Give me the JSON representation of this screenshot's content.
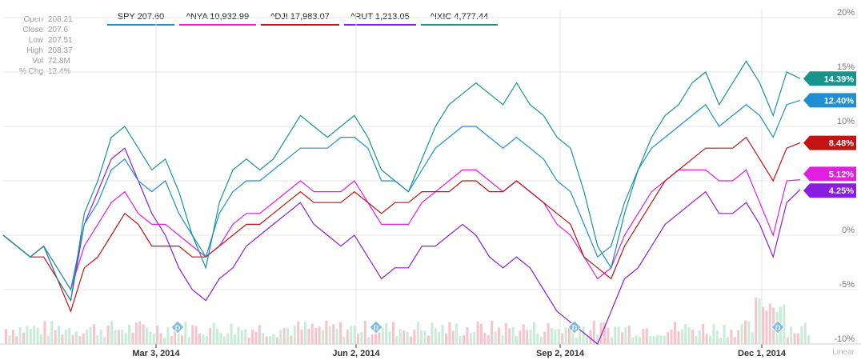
{
  "ohlc_panel": {
    "rows": [
      {
        "key": "Open",
        "value": "208.21"
      },
      {
        "key": "Close",
        "value": "207.6"
      },
      {
        "key": "Low",
        "value": "207.51"
      },
      {
        "key": "High",
        "value": "208.37"
      },
      {
        "key": "Vol",
        "value": "72.8M"
      },
      {
        "key": "% Chg",
        "value": "12.4%"
      }
    ]
  },
  "legend": [
    {
      "label": "SPY 207.60",
      "color": "#1f8fd1"
    },
    {
      "label": "^NYA 10,932.99",
      "color": "#e01fe0"
    },
    {
      "label": "^DJI 17,983.07",
      "color": "#c31313"
    },
    {
      "label": "^RUT 1,213.05",
      "color": "#8a1ee0"
    },
    {
      "label": "^IXIC 4,777.44",
      "color": "#19948c"
    }
  ],
  "scale_label": "Linear",
  "chart_data": {
    "type": "line",
    "x_ticks": [
      "Mar 3, 2014",
      "Jun 2, 2014",
      "Sep 2, 2014",
      "Dec 1, 2014"
    ],
    "y_ticks": [
      "20%",
      "15%",
      "10%",
      "5%",
      "0%",
      "-5%",
      "-10%"
    ],
    "ylim": [
      -10,
      20
    ],
    "grid": true,
    "series": [
      {
        "name": "^IXIC 4,777.44",
        "color": "#19948c",
        "end_label": "14.39%",
        "values": [
          0,
          -1,
          -2,
          -1,
          -4,
          -6,
          2,
          5,
          9,
          10,
          8,
          6,
          7,
          4,
          0,
          -3,
          3,
          6,
          7,
          6,
          7,
          9,
          11,
          10,
          9,
          10,
          11,
          9,
          6,
          5,
          4,
          7,
          10,
          12,
          13,
          14,
          13,
          12,
          14,
          12,
          11,
          9,
          8,
          4,
          -1,
          -3,
          2,
          6,
          9,
          11,
          12,
          14,
          15,
          12,
          14,
          16,
          14,
          11,
          15,
          14.4
        ]
      },
      {
        "name": "SPY 207.60",
        "color": "#1f8fd1",
        "end_label": "12.40%",
        "values": [
          0,
          -1,
          -2,
          -1,
          -3,
          -5,
          1,
          3,
          6,
          7,
          5,
          4,
          5,
          2,
          0,
          -2,
          2,
          4,
          5,
          5,
          6,
          7,
          8,
          8,
          8,
          9,
          9,
          8,
          5,
          5,
          4,
          6,
          8,
          9,
          10,
          10,
          9,
          8,
          9,
          8,
          7,
          5,
          4,
          1,
          -2,
          -1,
          3,
          6,
          8,
          9,
          10,
          11,
          12,
          10,
          11,
          12,
          11,
          9,
          12,
          12.4
        ]
      },
      {
        "name": "^DJI 17,983.07",
        "color": "#c31313",
        "end_label": "8.48%",
        "values": [
          0,
          -1,
          -2,
          -2,
          -4,
          -7,
          -3,
          -2,
          0,
          2,
          1,
          -1,
          -1,
          -1,
          -2,
          -2,
          -1,
          0,
          1,
          1,
          2,
          3,
          4,
          3,
          3,
          3,
          4,
          3,
          2,
          3,
          3,
          4,
          4,
          4,
          5,
          5,
          4,
          4,
          5,
          4,
          3,
          2,
          1,
          -2,
          -3,
          -4,
          -1,
          1,
          3,
          5,
          6,
          7,
          8,
          8,
          8,
          9,
          7,
          5,
          8,
          8.5
        ]
      },
      {
        "name": "^NYA 10,932.99",
        "color": "#e01fe0",
        "end_label": "5.12%",
        "values": [
          0,
          -1,
          -2,
          -1,
          -3,
          -5,
          -1,
          1,
          3,
          4,
          2,
          1,
          1,
          0,
          -1,
          -2,
          -1,
          1,
          2,
          2,
          3,
          4,
          5,
          4,
          4,
          4,
          5,
          3,
          1,
          1,
          1,
          3,
          4,
          5,
          6,
          6,
          5,
          4,
          5,
          4,
          3,
          1,
          0,
          -2,
          -4,
          -3,
          0,
          2,
          4,
          5,
          6,
          6,
          6,
          5,
          5,
          6,
          3,
          0,
          5,
          5.1
        ]
      },
      {
        "name": "^RUT 1,213.05",
        "color": "#8a1ee0",
        "end_label": "4.25%",
        "values": [
          0,
          -1,
          -2,
          -1,
          -4,
          -6,
          1,
          4,
          7,
          8,
          5,
          2,
          0,
          -3,
          -5,
          -6,
          -4,
          -3,
          -1,
          0,
          1,
          2,
          3,
          1,
          0,
          -1,
          0,
          -2,
          -4,
          -3,
          -3,
          -1,
          -1,
          0,
          1,
          0,
          -2,
          -3,
          -2,
          -3,
          -5,
          -7,
          -8,
          -9,
          -10,
          -7,
          -4,
          -3,
          -1,
          1,
          2,
          3,
          4,
          2,
          2,
          3,
          1,
          -2,
          3,
          4.2
        ]
      }
    ]
  }
}
